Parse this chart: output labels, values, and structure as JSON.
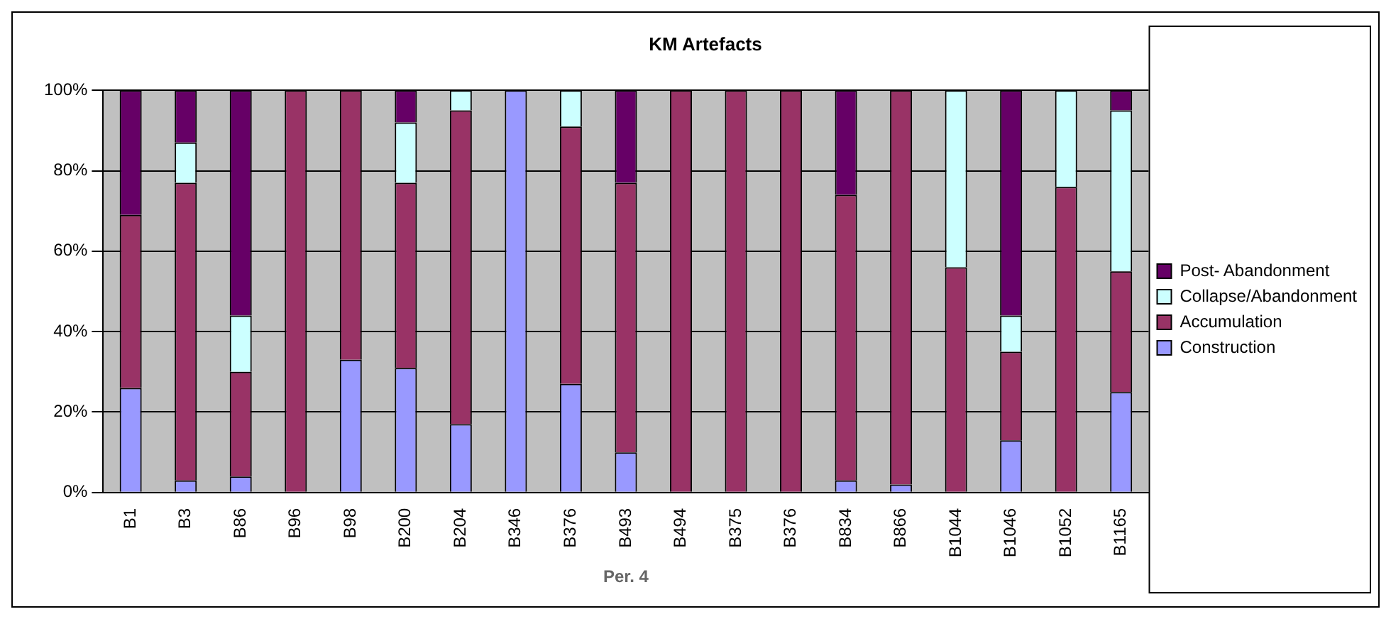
{
  "chart_data": {
    "type": "bar",
    "stacked": true,
    "title": "KM Artefacts",
    "xlabel": "Per. 4",
    "categories": [
      "B1",
      "B3",
      "B86",
      "B96",
      "B98",
      "B200",
      "B204",
      "B346",
      "B376",
      "B493",
      "B494",
      "B375",
      "B376",
      "B834",
      "B866",
      "B1044",
      "B1046",
      "B1052",
      "B1165"
    ],
    "series": [
      {
        "name": "Construction",
        "color": "#9999ff",
        "values": [
          26,
          3,
          4,
          0,
          33,
          31,
          17,
          100,
          27,
          10,
          0,
          0,
          0,
          3,
          2,
          0,
          13,
          0,
          25
        ]
      },
      {
        "name": "Accumulation",
        "color": "#993366",
        "values": [
          43,
          74,
          26,
          100,
          67,
          46,
          78,
          0,
          64,
          67,
          100,
          100,
          100,
          71,
          98,
          56,
          22,
          76,
          30
        ]
      },
      {
        "name": "Collapse/Abandonment",
        "color": "#ccffff",
        "values": [
          0,
          10,
          14,
          0,
          0,
          15,
          5,
          0,
          9,
          0,
          0,
          0,
          0,
          0,
          0,
          44,
          9,
          24,
          40
        ]
      },
      {
        "name": "Post- Abandonment",
        "color": "#660066",
        "values": [
          31,
          13,
          56,
          0,
          0,
          8,
          0,
          0,
          0,
          23,
          0,
          0,
          0,
          26,
          0,
          0,
          56,
          0,
          5
        ]
      }
    ],
    "ylim": [
      0,
      100
    ],
    "yticks": [
      {
        "value": 0,
        "label": "0%"
      },
      {
        "value": 20,
        "label": "20%"
      },
      {
        "value": 40,
        "label": "40%"
      },
      {
        "value": 60,
        "label": "60%"
      },
      {
        "value": 80,
        "label": "80%"
      },
      {
        "value": 100,
        "label": "100%"
      }
    ],
    "grid": "y",
    "legend": "right"
  }
}
